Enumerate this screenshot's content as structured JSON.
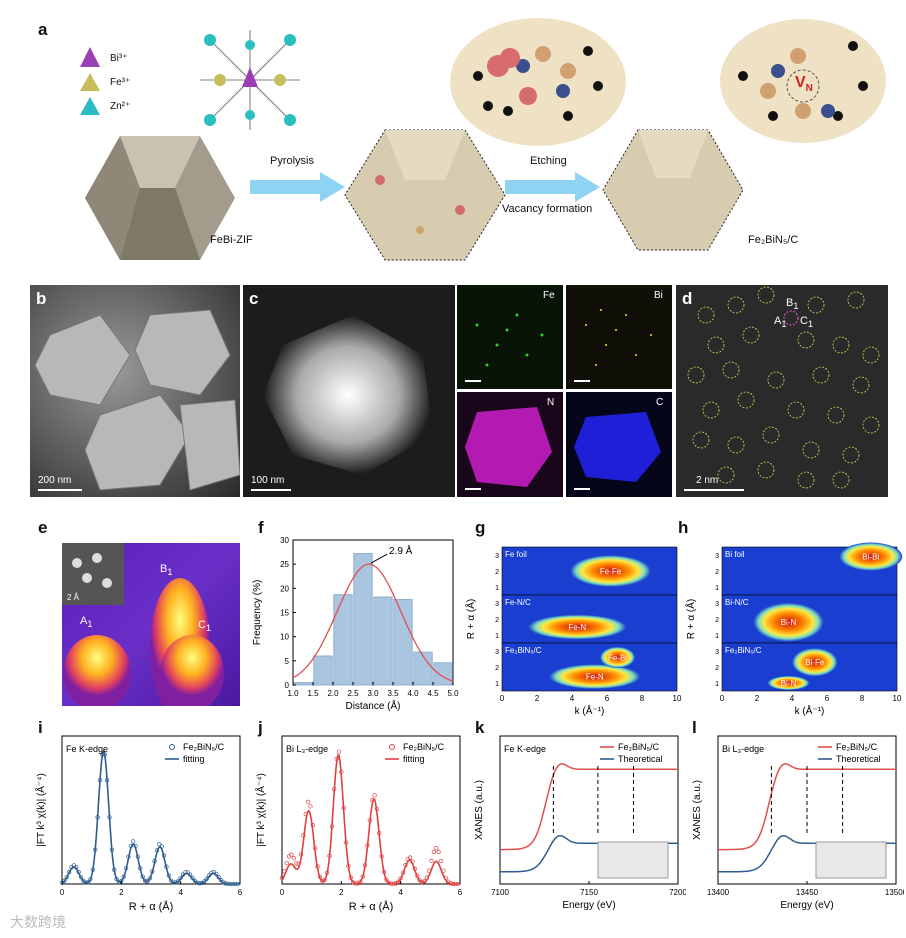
{
  "panels": {
    "a": {
      "label": "a",
      "legend": [
        "Bi³⁺",
        "Fe³⁺",
        "Zn²⁺"
      ],
      "step1": "Pyrolysis",
      "step2a": "Etching",
      "step2b": "Vacancy formation",
      "precursor": "FeBi-ZIF",
      "product": "Fe₂BiN₅/C",
      "vacancy": "V",
      "vacancy_sub": "N"
    },
    "b": {
      "label": "b",
      "scale": "200 nm"
    },
    "c": {
      "label": "c",
      "scale": "100 nm",
      "eds": [
        "Fe",
        "Bi",
        "N",
        "C"
      ]
    },
    "d": {
      "label": "d",
      "scale": "2 nm",
      "sites": [
        "B",
        "A",
        "C"
      ],
      "site_sub": "1"
    },
    "e": {
      "label": "e",
      "inset_scale": "2 Å",
      "peaks": [
        "B",
        "A",
        "C"
      ],
      "peak_sub": "1"
    },
    "f": {
      "label": "f"
    },
    "g": {
      "label": "g"
    },
    "h": {
      "label": "h"
    },
    "i": {
      "label": "i"
    },
    "j": {
      "label": "j"
    },
    "k": {
      "label": "k"
    },
    "l": {
      "label": "l"
    }
  },
  "watermark": "大数跨境",
  "chart_data": [
    {
      "id": "f",
      "type": "bar",
      "xlabel": "Distance (Å)",
      "ylabel": "Frequency (%)",
      "categories": [
        1.25,
        1.75,
        2.25,
        2.75,
        3.25,
        3.75,
        4.25,
        4.75
      ],
      "values": [
        0.5,
        6,
        18.7,
        27.2,
        18.2,
        17.7,
        6.8,
        4.6
      ],
      "xlim": [
        1.0,
        5.0
      ],
      "ylim": [
        0,
        30
      ],
      "xticks": [
        "1.0",
        "1.5",
        "2.0",
        "2.5",
        "3.0",
        "3.5",
        "4.0",
        "4.5",
        "5.0"
      ],
      "yticks": [
        "0",
        "5",
        "10",
        "15",
        "20",
        "25",
        "30"
      ],
      "annotation": "2.9 Å",
      "fit": {
        "type": "gaussian",
        "mean": 2.9,
        "sigma": 0.8,
        "amplitude": 25
      }
    },
    {
      "id": "g",
      "type": "heatmap",
      "xlabel": "k (Å⁻¹)",
      "ylabel": "R + α (Å)",
      "xticks": [
        "0",
        "2",
        "4",
        "6",
        "8",
        "10"
      ],
      "yticks": [
        "1",
        "2",
        "3"
      ],
      "rows": [
        {
          "name": "Fe foil",
          "spots": [
            {
              "label": "Fe-Fe",
              "k": 6.2,
              "r": 2.0,
              "w": 2.3,
              "h": 0.9
            }
          ]
        },
        {
          "name": "Fe-N/C",
          "spots": [
            {
              "label": "Fe-N",
              "k": 4.3,
              "r": 1.5,
              "w": 2.8,
              "h": 0.7
            }
          ]
        },
        {
          "name": "Fe₂BiN₅/C",
          "spots": [
            {
              "label": "Fe-N",
              "k": 5.3,
              "r": 1.4,
              "w": 2.6,
              "h": 0.7
            },
            {
              "label": "Fe-Bi",
              "k": 6.6,
              "r": 2.6,
              "w": 1.0,
              "h": 0.6
            }
          ]
        }
      ]
    },
    {
      "id": "h",
      "type": "heatmap",
      "xlabel": "k (Å⁻¹)",
      "ylabel": "R + α (Å)",
      "xticks": [
        "0",
        "2",
        "4",
        "6",
        "8",
        "10"
      ],
      "yticks": [
        "1",
        "2",
        "3"
      ],
      "rows": [
        {
          "name": "Bi foil",
          "spots": [
            {
              "label": "Bi-Bi",
              "k": 8.5,
              "r": 2.9,
              "w": 1.8,
              "h": 0.8
            }
          ]
        },
        {
          "name": "Bi-N/C",
          "spots": [
            {
              "label": "Bi-N",
              "k": 3.8,
              "r": 1.8,
              "w": 2.0,
              "h": 1.1
            }
          ]
        },
        {
          "name": "Fe₂BiN₅/C",
          "spots": [
            {
              "label": "Bi-Fe",
              "k": 5.3,
              "r": 2.3,
              "w": 1.3,
              "h": 0.8
            },
            {
              "label": "Bi-N",
              "k": 3.8,
              "r": 1.0,
              "w": 1.2,
              "h": 0.4
            }
          ]
        }
      ]
    },
    {
      "id": "i",
      "type": "line",
      "title": "Fe K-edge",
      "xlabel": "R + α (Å)",
      "ylabel": "|FT k³ χ(k)| (Å⁻⁴)",
      "xlim": [
        0,
        6
      ],
      "xticks": [
        "0",
        "2",
        "4",
        "6"
      ],
      "color": "#2e5d8f",
      "series": [
        {
          "name": "Fe₂BiN₅/C",
          "style": "circles",
          "peaks": [
            [
              0.4,
              0.14
            ],
            [
              1.4,
              1.0
            ],
            [
              2.4,
              0.32
            ],
            [
              3.3,
              0.3
            ],
            [
              4.2,
              0.09
            ],
            [
              5.1,
              0.09
            ]
          ]
        },
        {
          "name": "fitting",
          "style": "line",
          "peaks": [
            [
              0.4,
              0.13
            ],
            [
              1.4,
              1.0
            ],
            [
              2.4,
              0.3
            ],
            [
              3.3,
              0.28
            ],
            [
              4.2,
              0.08
            ],
            [
              5.1,
              0.08
            ]
          ]
        }
      ]
    },
    {
      "id": "j",
      "type": "line",
      "title": "Bi L₃-edge",
      "xlabel": "R + α (Å)",
      "ylabel": "|FT k³ χ(k)| (Å⁻⁴)",
      "xlim": [
        0,
        6
      ],
      "xticks": [
        "0",
        "2",
        "4",
        "6"
      ],
      "color": "#e04040",
      "series": [
        {
          "name": "Fe₂BiN₅/C",
          "style": "circles",
          "peaks": [
            [
              0.3,
              0.22
            ],
            [
              0.9,
              0.62
            ],
            [
              1.9,
              1.0
            ],
            [
              3.1,
              0.67
            ],
            [
              4.3,
              0.2
            ],
            [
              5.2,
              0.27
            ]
          ]
        },
        {
          "name": "fitting",
          "style": "line",
          "peaks": [
            [
              0.3,
              0.15
            ],
            [
              0.9,
              0.55
            ],
            [
              1.9,
              0.97
            ],
            [
              3.1,
              0.64
            ],
            [
              4.3,
              0.18
            ],
            [
              5.2,
              0.17
            ]
          ]
        }
      ]
    },
    {
      "id": "k",
      "type": "line",
      "title": "Fe K-edge",
      "xlabel": "Energy (eV)",
      "ylabel": "XANES (a.u.)",
      "xlim": [
        7100,
        7200
      ],
      "xticks": [
        "7100",
        "7150",
        "7200"
      ],
      "vlines": [
        7130,
        7155,
        7175
      ],
      "series": [
        {
          "name": "Fe₂BiN₅/C",
          "color": "#e05050"
        },
        {
          "name": "Theoretical",
          "color": "#2e5d8f"
        }
      ]
    },
    {
      "id": "l",
      "type": "line",
      "title": "Bi L₃-edge",
      "xlabel": "Energy (eV)",
      "ylabel": "XANES (a.u.)",
      "xlim": [
        13400,
        13500
      ],
      "xticks": [
        "13400",
        "13450",
        "13500"
      ],
      "vlines": [
        13430,
        13450,
        13470
      ],
      "series": [
        {
          "name": "Fe₂BiN₅/C",
          "color": "#e05050"
        },
        {
          "name": "Theoretical",
          "color": "#2e5d8f"
        }
      ]
    }
  ]
}
